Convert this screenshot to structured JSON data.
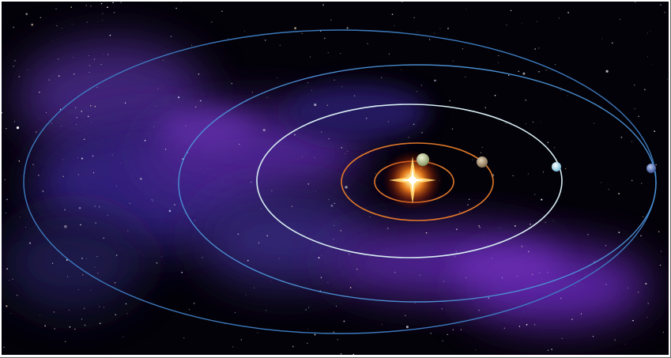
{
  "image": {
    "subject": "solar-system-orbits",
    "colors": {
      "space": "#030208",
      "nebula": "#5a2aa8",
      "nebula_deep": "#2a1f70",
      "star_core": "#ffffff",
      "star_glow": "#ff7a1a",
      "inner_orbit": "#e0782a",
      "middle_orbit": "#cfe4ea",
      "outer_orbit_1": "#3a7ec0",
      "outer_orbit_2": "#4a8ad0",
      "planet_1": "#b8c890",
      "planet_2": "#b39a78",
      "planet_3": "#bfe6f5",
      "planet_4": "#5a78c0"
    },
    "orbits": [
      {
        "name": "orbit-inner-small",
        "color_key": "inner_orbit"
      },
      {
        "name": "orbit-inner-large",
        "color_key": "inner_orbit"
      },
      {
        "name": "orbit-middle",
        "color_key": "middle_orbit"
      },
      {
        "name": "orbit-outer-1",
        "color_key": "outer_orbit_1"
      },
      {
        "name": "orbit-outer-2",
        "color_key": "outer_orbit_2"
      }
    ],
    "planets": [
      {
        "name": "planet-1",
        "color_key": "planet_1"
      },
      {
        "name": "planet-2",
        "color_key": "planet_2"
      },
      {
        "name": "planet-3",
        "color_key": "planet_3"
      },
      {
        "name": "planet-4",
        "color_key": "planet_4"
      }
    ]
  }
}
